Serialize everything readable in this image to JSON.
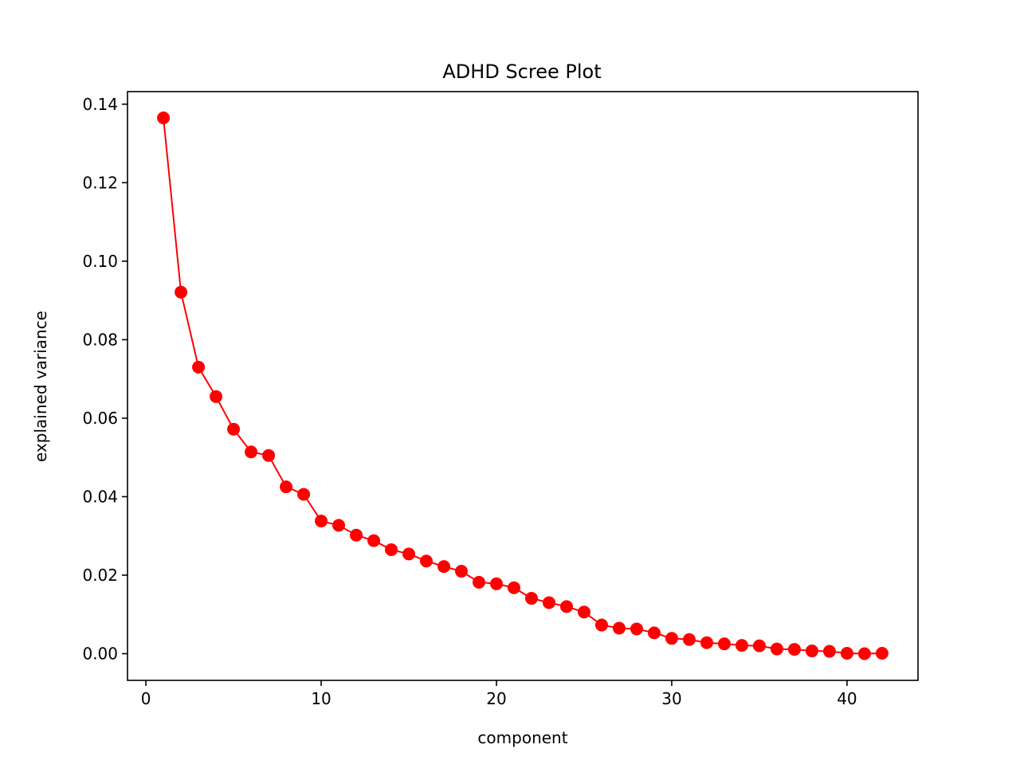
{
  "chart_data": {
    "type": "line",
    "title": "ADHD Scree Plot",
    "xlabel": "component",
    "ylabel": "explained variance",
    "xlim": [
      -1.05,
      44.05
    ],
    "ylim": [
      -0.0068,
      0.1432
    ],
    "xticks": [
      0,
      10,
      20,
      30,
      40
    ],
    "yticks": [
      0.0,
      0.02,
      0.04,
      0.06,
      0.08,
      0.1,
      0.12,
      0.14
    ],
    "xtick_labels": [
      "0",
      "10",
      "20",
      "30",
      "40"
    ],
    "ytick_labels": [
      "0.00",
      "0.02",
      "0.04",
      "0.06",
      "0.08",
      "0.10",
      "0.12",
      "0.14"
    ],
    "grid": false,
    "series": [
      {
        "color": "#ff0000",
        "marker": "circle",
        "x": [
          1,
          2,
          3,
          4,
          5,
          6,
          7,
          8,
          9,
          10,
          11,
          12,
          13,
          14,
          15,
          16,
          17,
          18,
          19,
          20,
          21,
          22,
          23,
          24,
          25,
          26,
          27,
          28,
          29,
          30,
          31,
          32,
          33,
          34,
          35,
          36,
          37,
          38,
          39,
          40,
          41,
          42
        ],
        "values": [
          0.1365,
          0.0921,
          0.073,
          0.0655,
          0.0572,
          0.0514,
          0.0505,
          0.0425,
          0.0406,
          0.0338,
          0.0327,
          0.0302,
          0.0288,
          0.0265,
          0.0254,
          0.0236,
          0.0222,
          0.021,
          0.0182,
          0.0178,
          0.0168,
          0.0141,
          0.013,
          0.012,
          0.0106,
          0.0073,
          0.0065,
          0.0063,
          0.0053,
          0.0039,
          0.0036,
          0.0028,
          0.0025,
          0.0021,
          0.002,
          0.0012,
          0.0011,
          0.0007,
          0.0006,
          0.0001,
          0.0,
          0.0001
        ]
      }
    ]
  }
}
